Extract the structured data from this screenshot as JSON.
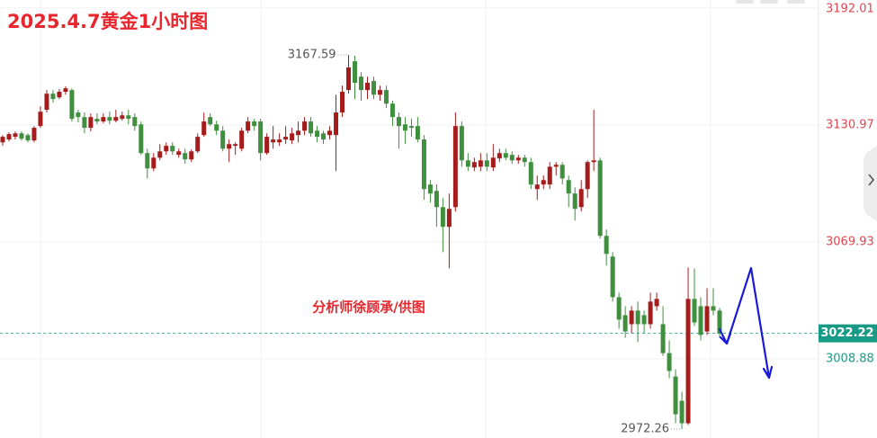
{
  "chart_data": {
    "type": "candlestick",
    "title": "2025.4.7黄金1小时图",
    "watermark": "分析师徐顾承/供图",
    "up_color": "#a51c1c",
    "down_color": "#3f8f3f",
    "label_up_color": "#e0464f",
    "label_down_color": "#189a86",
    "ylim": [
      2967.6,
      3196.2
    ],
    "yticks": [
      3008.88,
      3069.93,
      3130.97,
      3192.01
    ],
    "grid": true,
    "candles": [
      [
        3121.9,
        3125.7,
        3120.1,
        3124.8
      ],
      [
        3123.4,
        3127.1,
        3122.4,
        3126.2
      ],
      [
        3124.8,
        3127.6,
        3123.4,
        3126.6
      ],
      [
        3126.6,
        3127.6,
        3122.9,
        3123.8
      ],
      [
        3125.7,
        3126.6,
        3121.9,
        3122.9
      ],
      [
        3122.9,
        3130.4,
        3121.9,
        3129.5
      ],
      [
        3130.4,
        3140.7,
        3129.5,
        3137.9
      ],
      [
        3138.9,
        3149.2,
        3137.5,
        3147.3
      ],
      [
        3147.3,
        3149.2,
        3142.6,
        3144.5
      ],
      [
        3145.4,
        3149.7,
        3144.5,
        3148.3
      ],
      [
        3148.3,
        3151.1,
        3146.8,
        3150.1
      ],
      [
        3149.2,
        3150.1,
        3132.8,
        3134.2
      ],
      [
        3137.5,
        3138.9,
        3132.3,
        3135.1
      ],
      [
        3135.1,
        3137.5,
        3126.6,
        3129.5
      ],
      [
        3129.5,
        3137.0,
        3127.6,
        3135.1
      ],
      [
        3134.2,
        3137.0,
        3131.3,
        3132.8
      ],
      [
        3132.8,
        3137.0,
        3131.8,
        3135.1
      ],
      [
        3135.1,
        3137.9,
        3131.3,
        3133.2
      ],
      [
        3133.2,
        3138.9,
        3132.3,
        3135.1
      ],
      [
        3134.2,
        3137.9,
        3133.2,
        3136.0
      ],
      [
        3136.0,
        3138.9,
        3131.3,
        3134.2
      ],
      [
        3135.1,
        3137.0,
        3128.0,
        3130.4
      ],
      [
        3131.3,
        3132.8,
        3115.4,
        3116.3
      ],
      [
        3116.3,
        3118.6,
        3103.1,
        3108.3
      ],
      [
        3108.3,
        3116.3,
        3106.9,
        3113.9
      ],
      [
        3113.9,
        3121.0,
        3112.5,
        3117.2
      ],
      [
        3117.2,
        3121.9,
        3115.4,
        3120.1
      ],
      [
        3120.1,
        3121.9,
        3115.4,
        3117.2
      ],
      [
        3115.4,
        3118.6,
        3113.9,
        3117.2
      ],
      [
        3116.3,
        3118.6,
        3110.7,
        3113.0
      ],
      [
        3113.0,
        3118.2,
        3111.6,
        3117.2
      ],
      [
        3117.2,
        3126.6,
        3116.3,
        3124.8
      ],
      [
        3125.7,
        3137.5,
        3124.8,
        3132.8
      ],
      [
        3135.1,
        3137.0,
        3130.4,
        3131.3
      ],
      [
        3131.3,
        3133.2,
        3125.7,
        3128.0
      ],
      [
        3128.0,
        3130.4,
        3117.2,
        3118.6
      ],
      [
        3118.6,
        3123.4,
        3111.6,
        3121.0
      ],
      [
        3120.1,
        3121.9,
        3115.4,
        3121.0
      ],
      [
        3118.6,
        3129.5,
        3117.2,
        3128.0
      ],
      [
        3128.0,
        3135.1,
        3126.6,
        3132.8
      ],
      [
        3132.8,
        3134.2,
        3128.0,
        3130.4
      ],
      [
        3132.8,
        3134.2,
        3112.5,
        3116.3
      ],
      [
        3116.3,
        3126.6,
        3115.4,
        3124.8
      ],
      [
        3121.9,
        3130.4,
        3118.6,
        3123.4
      ],
      [
        3121.9,
        3126.6,
        3120.1,
        3123.4
      ],
      [
        3123.4,
        3130.4,
        3121.0,
        3124.8
      ],
      [
        3122.9,
        3129.5,
        3121.0,
        3126.6
      ],
      [
        3125.7,
        3132.8,
        3121.9,
        3128.0
      ],
      [
        3128.0,
        3135.1,
        3125.7,
        3132.8
      ],
      [
        3132.8,
        3135.1,
        3124.8,
        3126.6
      ],
      [
        3128.0,
        3130.4,
        3121.9,
        3124.8
      ],
      [
        3126.6,
        3128.0,
        3121.0,
        3123.4
      ],
      [
        3125.7,
        3130.4,
        3123.4,
        3128.0
      ],
      [
        3125.7,
        3146.8,
        3106.9,
        3137.5
      ],
      [
        3137.5,
        3151.5,
        3135.1,
        3148.3
      ],
      [
        3149.2,
        3167.59,
        3147.3,
        3161.0
      ],
      [
        3164.2,
        3167.1,
        3144.5,
        3153.0
      ],
      [
        3156.2,
        3158.6,
        3143.6,
        3149.2
      ],
      [
        3149.2,
        3156.2,
        3144.5,
        3153.0
      ],
      [
        3153.9,
        3156.2,
        3144.5,
        3146.8
      ],
      [
        3146.8,
        3151.5,
        3143.6,
        3149.2
      ],
      [
        3149.2,
        3151.5,
        3139.8,
        3142.1
      ],
      [
        3142.1,
        3143.6,
        3130.4,
        3135.1
      ],
      [
        3135.1,
        3137.5,
        3118.6,
        3130.4
      ],
      [
        3131.3,
        3135.1,
        3121.0,
        3128.0
      ],
      [
        3130.4,
        3134.2,
        3124.8,
        3129.5
      ],
      [
        3130.4,
        3135.1,
        3121.9,
        3123.4
      ],
      [
        3123.4,
        3125.7,
        3091.9,
        3097.5
      ],
      [
        3099.9,
        3102.2,
        3090.5,
        3095.2
      ],
      [
        3096.6,
        3099.9,
        3077.8,
        3088.1
      ],
      [
        3088.1,
        3092.8,
        3064.6,
        3077.8
      ],
      [
        3077.8,
        3095.2,
        3056.1,
        3087.2
      ],
      [
        3088.1,
        3137.5,
        3085.8,
        3130.4
      ],
      [
        3130.4,
        3132.8,
        3109.2,
        3112.5
      ],
      [
        3112.5,
        3116.3,
        3106.9,
        3109.2
      ],
      [
        3108.8,
        3113.9,
        3106.9,
        3111.6
      ],
      [
        3109.2,
        3116.3,
        3106.9,
        3112.5
      ],
      [
        3112.5,
        3116.3,
        3106.9,
        3109.2
      ],
      [
        3108.8,
        3121.0,
        3106.9,
        3113.9
      ],
      [
        3113.5,
        3118.6,
        3111.6,
        3116.3
      ],
      [
        3116.3,
        3118.6,
        3112.5,
        3113.9
      ],
      [
        3115.4,
        3117.2,
        3110.7,
        3112.5
      ],
      [
        3112.5,
        3115.4,
        3110.7,
        3113.9
      ],
      [
        3113.9,
        3115.4,
        3109.2,
        3111.6
      ],
      [
        3111.6,
        3113.9,
        3097.5,
        3099.9
      ],
      [
        3097.5,
        3104.6,
        3091.9,
        3099.9
      ],
      [
        3099.9,
        3104.6,
        3097.5,
        3102.2
      ],
      [
        3099.9,
        3111.6,
        3097.5,
        3109.2
      ],
      [
        3109.2,
        3111.6,
        3104.6,
        3110.2
      ],
      [
        3110.2,
        3111.6,
        3099.9,
        3103.1
      ],
      [
        3102.2,
        3104.6,
        3088.1,
        3095.2
      ],
      [
        3095.2,
        3098.4,
        3081.1,
        3087.2
      ],
      [
        3088.1,
        3102.2,
        3085.8,
        3097.5
      ],
      [
        3097.5,
        3112.5,
        3092.8,
        3111.6
      ],
      [
        3111.6,
        3138.9,
        3106.9,
        3112.5
      ],
      [
        3112.5,
        3113.9,
        3071.7,
        3073.1
      ],
      [
        3073.1,
        3076.4,
        3057.6,
        3063.7
      ],
      [
        3062.3,
        3064.6,
        3038.8,
        3041.1
      ],
      [
        3041.1,
        3043.5,
        3024.7,
        3029.4
      ],
      [
        3031.7,
        3036.4,
        3019.9,
        3023.2
      ],
      [
        3027.0,
        3036.4,
        3022.3,
        3034.1
      ],
      [
        3034.1,
        3038.8,
        3017.6,
        3027.0
      ],
      [
        3031.7,
        3034.1,
        3022.3,
        3027.0
      ],
      [
        3027.0,
        3043.5,
        3024.7,
        3038.8
      ],
      [
        3036.4,
        3043.5,
        3034.1,
        3040.2
      ],
      [
        3027.0,
        3036.4,
        3010.5,
        3011.9
      ],
      [
        3011.9,
        3018.5,
        2998.8,
        3002.6
      ],
      [
        2999.7,
        3003.5,
        2975.3,
        2980.0
      ],
      [
        2987.0,
        2991.8,
        2972.26,
        2975.3
      ],
      [
        2975.3,
        3056.6,
        2974.4,
        3040.2
      ],
      [
        3040.2,
        3056.1,
        3026.1,
        3027.9
      ],
      [
        3036.4,
        3041.1,
        3018.5,
        3021.4
      ],
      [
        3023.2,
        3045.8,
        3021.4,
        3036.4
      ],
      [
        3036.4,
        3045.8,
        3031.7,
        3034.1
      ],
      [
        3034.1,
        3035.5,
        3019.9,
        3022.22
      ]
    ]
  }
}
